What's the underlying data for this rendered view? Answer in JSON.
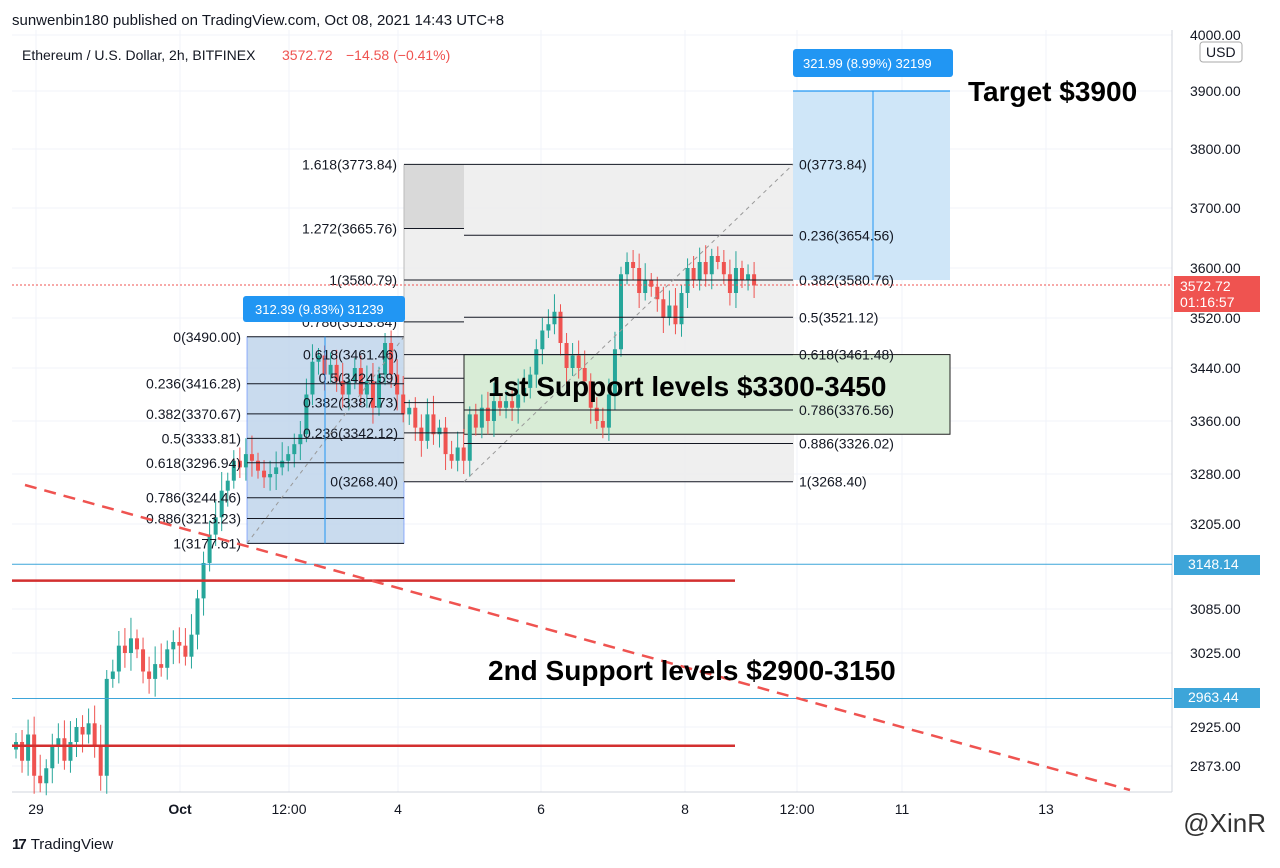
{
  "header": {
    "publish_text": "sunwenbin180 published on TradingView.com, Oct 08, 2021 14:43 UTC+8",
    "symbol_text": "Ethereum / U.S. Dollar, 2h, BITFINEX",
    "last_price": "3572.72",
    "change_text": "−14.58 (−0.41%)",
    "currency": "USD"
  },
  "footer": {
    "brand": "TradingView",
    "watermark": "@XinR"
  },
  "colors": {
    "up": "#26a69a",
    "down": "#ef5350",
    "support_line": "#d32f2f",
    "hline": "#3da5d9",
    "measure": "#2962ff",
    "price_tag": "#ef5350",
    "level_tag": "#3da5d9"
  },
  "annotations": {
    "target": "Target $3900",
    "support1": "1st Support levels $3300-3450",
    "support2": "2nd Support levels $2900-3150",
    "measure1": "312.39 (9.83%) 31239",
    "measure2": "321.99 (8.99%) 32199"
  },
  "price_tags": {
    "last": "3572.72",
    "countdown": "01:16:57",
    "level1": "3148.14",
    "level2": "2963.44"
  },
  "chart_data": {
    "type": "candlestick",
    "symbol": "Ethereum / U.S. Dollar, 2h, BITFINEX",
    "y_ticks": [
      2873.0,
      2925.0,
      3025.0,
      3085.0,
      3205.0,
      3280.0,
      3360.0,
      3440.0,
      3520.0,
      3600.0,
      3700.0,
      3800.0,
      3900.0,
      4000.0
    ],
    "x_ticks": [
      "29",
      "Oct",
      "12:00",
      "4",
      "6",
      "8",
      "12:00",
      "11",
      "13"
    ],
    "fib_left": [
      {
        "label": "1.618(3773.84)",
        "price": 3773.84
      },
      {
        "label": "1.272(3665.76)",
        "price": 3665.76
      },
      {
        "label": "1(3580.79)",
        "price": 3580.79
      },
      {
        "label": "0.786(3513.84)",
        "price": 3513.84
      }
    ],
    "fib_small": [
      {
        "label": "0(3490.00)",
        "price": 3490.0
      },
      {
        "label": "0.236(3416.28)",
        "price": 3416.28
      },
      {
        "label": "0.382(3370.67)",
        "price": 3370.67
      },
      {
        "label": "0.5(3333.81)",
        "price": 3333.81
      },
      {
        "label": "0.618(3296.94)",
        "price": 3296.94
      },
      {
        "label": "0.786(3244.46)",
        "price": 3244.46
      },
      {
        "label": "0.886(3213.23)",
        "price": 3213.23
      },
      {
        "label": "1(3177.61)",
        "price": 3177.61
      }
    ],
    "fib_mid": [
      {
        "label": "0.618(3461.46)",
        "price": 3461.46
      },
      {
        "label": "0.5(3424.59)",
        "price": 3424.59
      },
      {
        "label": "0.382(3387.73)",
        "price": 3387.73
      },
      {
        "label": "0.236(3342.12)",
        "price": 3342.12
      },
      {
        "label": "0(3268.40)",
        "price": 3268.4
      }
    ],
    "fib_right": [
      {
        "label": "0(3773.84)",
        "price": 3773.84
      },
      {
        "label": "0.236(3654.56)",
        "price": 3654.56
      },
      {
        "label": "0.382(3580.76)",
        "price": 3580.76
      },
      {
        "label": "0.5(3521.12)",
        "price": 3521.12
      },
      {
        "label": "0.618(3461.48)",
        "price": 3461.48
      },
      {
        "label": "0.786(3376.56)",
        "price": 3376.56
      },
      {
        "label": "0.886(3326.02)",
        "price": 3326.02
      },
      {
        "label": "1(3268.40)",
        "price": 3268.4
      }
    ],
    "support_lines": [
      3125,
      2900
    ],
    "horizontal_levels": [
      3148.14,
      2963.44
    ],
    "target": 3900,
    "candles_close": [
      2905,
      2880,
      2915,
      2860,
      2850,
      2870,
      2900,
      2910,
      2880,
      2905,
      2925,
      2915,
      2930,
      2900,
      2860,
      2990,
      3000,
      3035,
      3025,
      3045,
      3030,
      3000,
      2990,
      3010,
      3005,
      3030,
      3040,
      3035,
      3020,
      3050,
      3100,
      3150,
      3190,
      3215,
      3255,
      3270,
      3300,
      3290,
      3310,
      3300,
      3285,
      3275,
      3280,
      3290,
      3300,
      3310,
      3325,
      3340,
      3400,
      3450,
      3460,
      3430,
      3445,
      3420,
      3400,
      3420,
      3440,
      3400,
      3420,
      3380,
      3430,
      3480,
      3430,
      3400,
      3370,
      3380,
      3350,
      3330,
      3370,
      3340,
      3350,
      3310,
      3300,
      3320,
      3300,
      3370,
      3350,
      3380,
      3360,
      3390,
      3380,
      3390,
      3380,
      3400,
      3410,
      3430,
      3470,
      3500,
      3510,
      3530,
      3480,
      3440,
      3460,
      3440,
      3420,
      3380,
      3360,
      3350,
      3400,
      3470,
      3590,
      3610,
      3600,
      3560,
      3580,
      3570,
      3550,
      3520,
      3540,
      3510,
      3560,
      3600,
      3580,
      3610,
      3590,
      3620,
      3610,
      3590,
      3560,
      3600,
      3580,
      3590,
      3572
    ]
  }
}
